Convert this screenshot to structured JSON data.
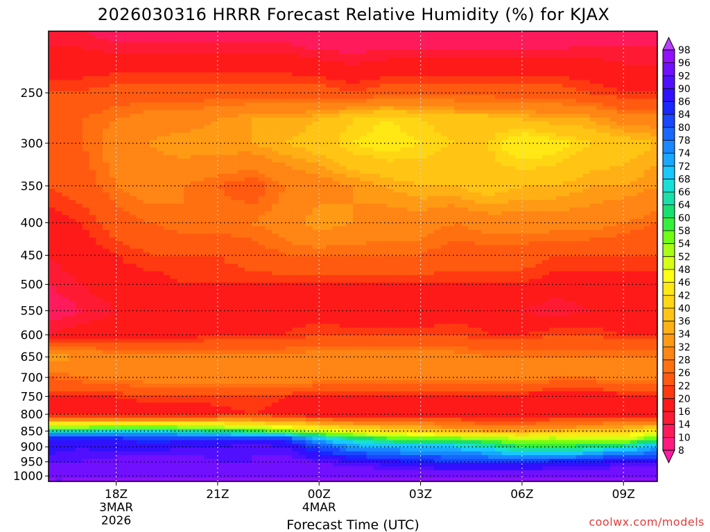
{
  "chart_data": {
    "type": "heatmap",
    "title": "2026030316 HRRR Forecast Relative Humidity (%) for KJAX",
    "xlabel": "Forecast Time (UTC)",
    "ylabel": "",
    "x_ticks": [
      {
        "hour": 2,
        "label": "18Z",
        "date": "3MAR",
        "year": "2026"
      },
      {
        "hour": 5,
        "label": "21Z"
      },
      {
        "hour": 8,
        "label": "00Z",
        "date": "4MAR"
      },
      {
        "hour": 11,
        "label": "03Z"
      },
      {
        "hour": 14,
        "label": "06Z"
      },
      {
        "hour": 17,
        "label": "09Z"
      }
    ],
    "xlim": [
      0,
      18
    ],
    "y_ticks": [
      "250",
      "300",
      "350",
      "400",
      "450",
      "500",
      "550",
      "600",
      "650",
      "700",
      "750",
      "800",
      "850",
      "900",
      "950",
      "1000"
    ],
    "y_values": [
      250,
      300,
      350,
      400,
      450,
      500,
      550,
      600,
      650,
      700,
      750,
      800,
      850,
      900,
      950,
      1000
    ],
    "ylim": [
      200,
      1020
    ],
    "y_scale": "log",
    "hours": [
      0,
      1,
      2,
      3,
      4,
      5,
      6,
      7,
      8,
      9,
      10,
      11,
      12,
      13,
      14,
      15,
      16,
      17,
      18
    ],
    "levels": [
      200,
      250,
      275,
      300,
      350,
      400,
      450,
      500,
      550,
      600,
      650,
      700,
      750,
      800,
      850,
      875,
      900,
      950,
      1000
    ],
    "rh": [
      [
        14,
        14,
        12,
        12,
        12,
        12,
        12,
        12,
        10,
        10,
        10,
        10,
        10,
        10,
        10,
        10,
        12,
        12,
        12
      ],
      [
        22,
        22,
        24,
        24,
        24,
        24,
        24,
        24,
        24,
        22,
        24,
        24,
        24,
        24,
        24,
        24,
        22,
        20,
        20
      ],
      [
        24,
        26,
        28,
        30,
        30,
        32,
        34,
        34,
        36,
        40,
        42,
        40,
        38,
        38,
        36,
        34,
        34,
        30,
        30
      ],
      [
        22,
        26,
        30,
        32,
        34,
        34,
        34,
        36,
        38,
        42,
        44,
        42,
        40,
        40,
        46,
        44,
        40,
        38,
        36
      ],
      [
        22,
        24,
        28,
        30,
        28,
        26,
        24,
        28,
        30,
        32,
        34,
        36,
        36,
        38,
        36,
        36,
        34,
        34,
        32
      ],
      [
        18,
        20,
        24,
        26,
        28,
        28,
        28,
        30,
        34,
        32,
        30,
        30,
        28,
        30,
        30,
        30,
        30,
        28,
        26
      ],
      [
        16,
        18,
        20,
        22,
        22,
        22,
        24,
        26,
        26,
        26,
        26,
        26,
        24,
        24,
        24,
        22,
        22,
        22,
        22
      ],
      [
        14,
        16,
        18,
        18,
        20,
        20,
        20,
        20,
        20,
        20,
        20,
        20,
        20,
        20,
        20,
        18,
        18,
        18,
        18
      ],
      [
        12,
        14,
        16,
        16,
        16,
        18,
        18,
        18,
        18,
        16,
        16,
        16,
        18,
        18,
        16,
        14,
        16,
        16,
        16
      ],
      [
        16,
        18,
        18,
        18,
        18,
        20,
        20,
        20,
        22,
        22,
        22,
        22,
        22,
        20,
        20,
        22,
        22,
        20,
        20
      ],
      [
        34,
        32,
        30,
        30,
        30,
        30,
        30,
        30,
        30,
        30,
        30,
        30,
        30,
        28,
        28,
        28,
        28,
        28,
        28
      ],
      [
        26,
        28,
        30,
        30,
        30,
        30,
        32,
        32,
        30,
        30,
        30,
        30,
        30,
        30,
        30,
        28,
        28,
        30,
        30
      ],
      [
        20,
        20,
        20,
        22,
        22,
        22,
        22,
        20,
        20,
        18,
        18,
        18,
        18,
        18,
        18,
        18,
        18,
        18,
        20
      ],
      [
        16,
        16,
        16,
        16,
        16,
        18,
        20,
        18,
        16,
        16,
        16,
        16,
        16,
        16,
        16,
        16,
        16,
        16,
        16
      ],
      [
        66,
        66,
        68,
        68,
        66,
        64,
        60,
        56,
        50,
        46,
        42,
        40,
        36,
        34,
        34,
        36,
        38,
        40,
        44
      ],
      [
        86,
        88,
        86,
        84,
        84,
        84,
        86,
        84,
        72,
        64,
        60,
        56,
        56,
        56,
        52,
        54,
        50,
        50,
        60
      ],
      [
        88,
        90,
        88,
        88,
        90,
        90,
        92,
        90,
        82,
        74,
        72,
        70,
        70,
        66,
        60,
        60,
        62,
        66,
        72
      ],
      [
        92,
        92,
        94,
        94,
        94,
        92,
        92,
        94,
        92,
        90,
        88,
        86,
        84,
        84,
        84,
        86,
        86,
        90,
        90
      ],
      [
        96,
        96,
        96,
        96,
        96,
        96,
        96,
        96,
        96,
        96,
        96,
        96,
        96,
        96,
        96,
        96,
        96,
        96,
        96
      ]
    ],
    "colorbar": {
      "levels": [
        8,
        10,
        14,
        16,
        20,
        22,
        26,
        28,
        32,
        34,
        36,
        40,
        42,
        46,
        48,
        52,
        54,
        58,
        60,
        64,
        66,
        68,
        72,
        74,
        78,
        80,
        84,
        86,
        90,
        92,
        96,
        98
      ],
      "labels": [
        "98",
        "96",
        "92",
        "90",
        "86",
        "84",
        "80",
        "78",
        "74",
        "72",
        "68",
        "66",
        "64",
        "60",
        "58",
        "54",
        "52",
        "48",
        "46",
        "42",
        "40",
        "36",
        "34",
        "32",
        "28",
        "26",
        "22",
        "20",
        "16",
        "14",
        "10",
        "8"
      ]
    },
    "grid": true,
    "legend": "right"
  },
  "credit": "coolwx.com/models"
}
